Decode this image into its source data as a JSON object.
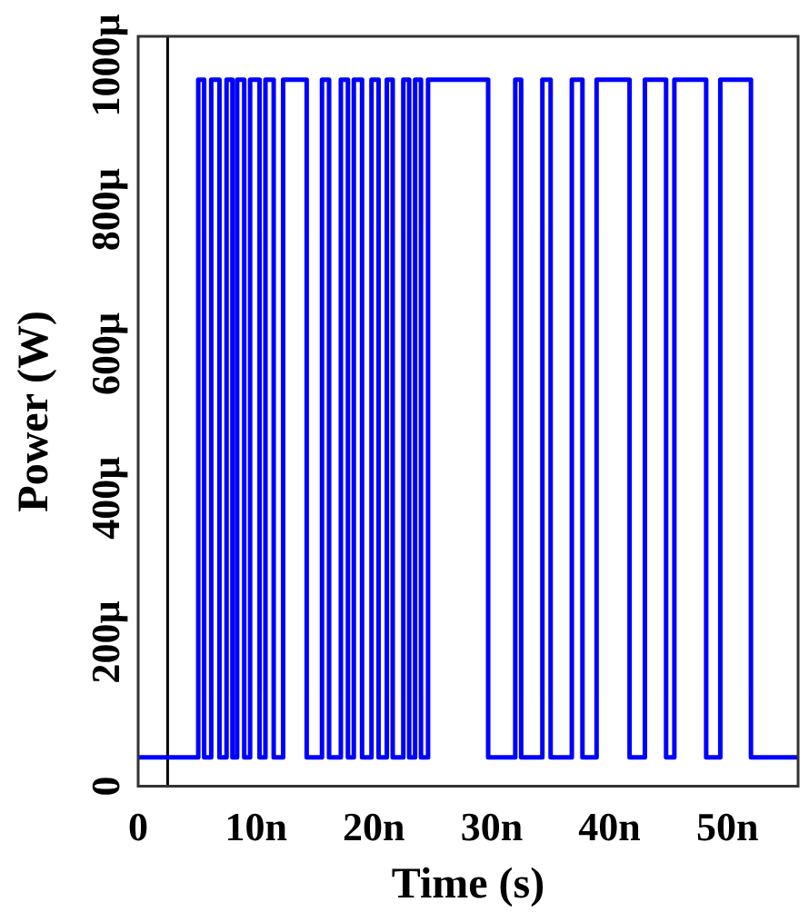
{
  "chart_data": {
    "type": "line",
    "xlabel": "Time (s)",
    "ylabel": "Power (W)",
    "xlim": [
      0,
      56
    ],
    "xticks": [
      0,
      {
        "value": 10,
        "label": "10n"
      },
      {
        "value": 20,
        "label": "20n"
      },
      {
        "value": 30,
        "label": "30n"
      },
      {
        "value": 40,
        "label": "40n"
      },
      {
        "value": 50,
        "label": "50n"
      }
    ],
    "ylim": [
      0,
      1040
    ],
    "yticks": [
      0,
      {
        "value": 200,
        "label": "200µ"
      },
      {
        "value": 400,
        "label": "400µ"
      },
      {
        "value": 600,
        "label": "600µ"
      },
      {
        "value": 800,
        "label": "800µ"
      },
      {
        "value": 1000,
        "label": "1000µ"
      }
    ],
    "grid": false,
    "legend": false,
    "marker": "none",
    "line_style": "solid",
    "ref_lines": [
      {
        "axis": "x",
        "value": 2.5,
        "color": "#000000"
      }
    ],
    "series": [
      {
        "color": "#0000ff",
        "x": [
          0,
          5.1,
          5.1,
          5.6,
          5.6,
          6.2,
          6.2,
          6.9,
          6.9,
          7.5,
          7.5,
          8.0,
          8.0,
          8.4,
          8.4,
          9.0,
          9.0,
          9.5,
          9.5,
          10.3,
          10.3,
          10.8,
          10.8,
          11.5,
          11.5,
          12.3,
          12.3,
          14.3,
          14.3,
          15.6,
          15.6,
          16.2,
          16.2,
          17.2,
          17.2,
          17.8,
          17.8,
          18.3,
          18.3,
          19.0,
          19.0,
          19.8,
          19.8,
          20.4,
          20.4,
          21.1,
          21.1,
          21.6,
          21.6,
          22.5,
          22.5,
          23.0,
          23.0,
          23.5,
          23.5,
          24.0,
          24.0,
          24.6,
          24.6,
          29.7,
          29.7,
          32.0,
          32.0,
          32.5,
          32.5,
          34.3,
          34.3,
          35.0,
          35.0,
          36.8,
          36.8,
          37.7,
          37.7,
          38.9,
          38.9,
          41.7,
          41.7,
          43.0,
          43.0,
          44.8,
          44.8,
          45.5,
          45.5,
          48.2,
          48.2,
          49.4,
          49.4,
          52.0,
          52.0,
          56
        ],
        "values": [
          40,
          40,
          980,
          980,
          40,
          40,
          980,
          980,
          40,
          40,
          980,
          980,
          40,
          40,
          980,
          980,
          40,
          40,
          980,
          980,
          40,
          40,
          980,
          980,
          40,
          40,
          980,
          980,
          40,
          40,
          980,
          980,
          40,
          40,
          980,
          980,
          40,
          40,
          980,
          980,
          40,
          40,
          980,
          980,
          40,
          40,
          980,
          980,
          40,
          40,
          980,
          980,
          40,
          40,
          980,
          980,
          40,
          40,
          980,
          980,
          40,
          40,
          980,
          980,
          40,
          40,
          980,
          980,
          40,
          40,
          980,
          980,
          40,
          40,
          980,
          980,
          40,
          40,
          980,
          980,
          40,
          40,
          980,
          980,
          40,
          40,
          980,
          980,
          40,
          40
        ]
      }
    ]
  }
}
